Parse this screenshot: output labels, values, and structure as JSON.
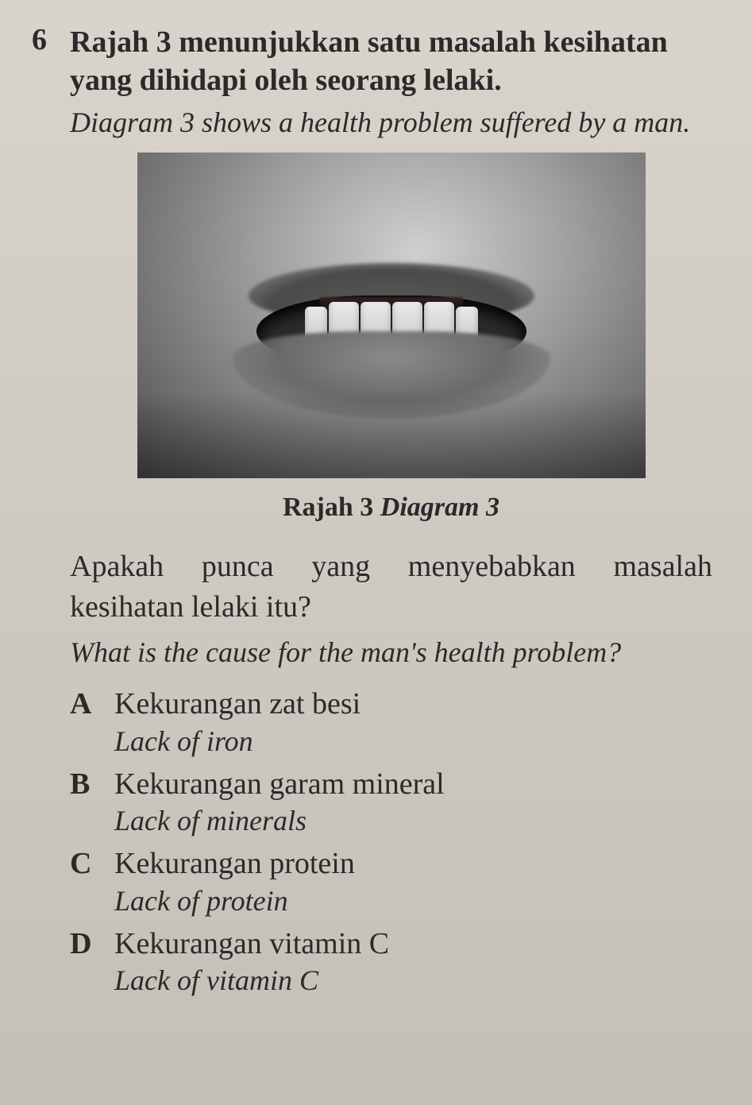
{
  "question": {
    "number": "6",
    "stem_ms": "Rajah 3 menunjukkan satu masalah kesihatan yang dihidapi oleh seorang lelaki.",
    "stem_en": "Diagram 3 shows a health problem suffered by a man.",
    "caption_ms": "Rajah 3",
    "caption_en": "Diagram 3",
    "prompt_ms": "Apakah punca yang menyebabkan masalah kesihatan lelaki itu?",
    "prompt_en": "What is the cause for the man's health problem?",
    "options": [
      {
        "letter": "A",
        "ms": "Kekurangan zat besi",
        "en": "Lack of iron"
      },
      {
        "letter": "B",
        "ms": "Kekurangan garam mineral",
        "en": "Lack of minerals"
      },
      {
        "letter": "C",
        "ms": "Kekurangan protein",
        "en": "Lack of protein"
      },
      {
        "letter": "D",
        "ms": "Kekurangan vitamin C",
        "en": "Lack of vitamin C"
      }
    ]
  },
  "figure": {
    "description": "close-up grayscale photo of a man's mouth showing bleeding gums"
  },
  "colors": {
    "page_bg_top": "#d8d4cc",
    "page_bg_bottom": "#c4c0b8",
    "text": "#2a2a2a"
  },
  "typography": {
    "body_fontsize_pt": 28,
    "italic_fontsize_pt": 27,
    "font_family": "serif"
  }
}
